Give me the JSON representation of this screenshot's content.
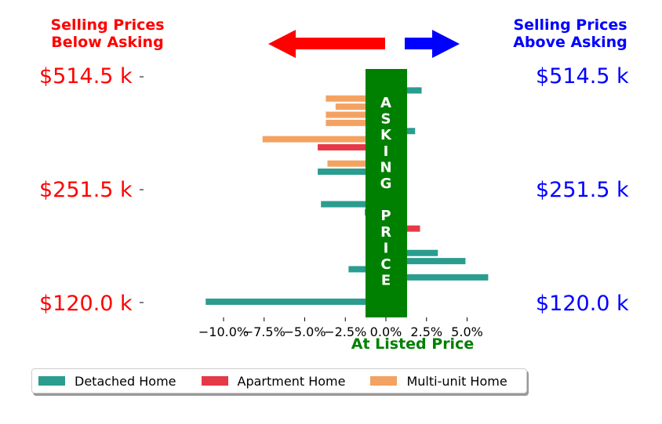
{
  "header": {
    "left_title": "Selling Prices\nBelow Asking",
    "right_title": "Selling Prices\nAbove Asking",
    "left_color": "#ff0000",
    "right_color": "#0000ff"
  },
  "price_labels": {
    "left": [
      "$514.5 k",
      "$251.5 k",
      "$120.0 k"
    ],
    "right": [
      "$514.5 k",
      "$251.5 k",
      "$120.0 k"
    ]
  },
  "center_band": {
    "label": "ASKING PRICE",
    "color": "#008000"
  },
  "chart_data": {
    "type": "bar",
    "orientation": "horizontal",
    "xlabel": "At Listed Price",
    "xlim": [
      -12.5,
      8.8
    ],
    "xticks": [
      -10.0,
      -7.5,
      -5.0,
      -2.5,
      0.0,
      2.5,
      5.0
    ],
    "xtick_labels": [
      "−10.0%",
      "−7.5%",
      "−5.0%",
      "−2.5%",
      "0.0%",
      "2.5%",
      "5.0%"
    ],
    "ylabels": [
      "$514.5 k",
      "$251.5 k",
      "$120.0 k"
    ],
    "grid": false,
    "legend_position": "bottom",
    "series_colors": {
      "Detached Home": "#2a9d8f",
      "Apartment Home": "#e63946",
      "Multi-unit Home": "#f4a261"
    },
    "series": [
      {
        "name": "Detached Home",
        "category": 0,
        "value": -0.5
      },
      {
        "name": "Detached Home",
        "category": 1,
        "value": 2.2
      },
      {
        "name": "Multi-unit Home",
        "category": 2,
        "value": -3.7
      },
      {
        "name": "Multi-unit Home",
        "category": 3,
        "value": -3.1
      },
      {
        "name": "Multi-unit Home",
        "category": 4,
        "value": -3.7
      },
      {
        "name": "Multi-unit Home",
        "category": 5,
        "value": -3.7
      },
      {
        "name": "Detached Home",
        "category": 6,
        "value": 1.8
      },
      {
        "name": "Multi-unit Home",
        "category": 7,
        "value": -7.6
      },
      {
        "name": "Apartment Home",
        "category": 8,
        "value": -4.2
      },
      {
        "name": "Detached Home",
        "category": 9,
        "value": 1.2
      },
      {
        "name": "Multi-unit Home",
        "category": 10,
        "value": -3.6
      },
      {
        "name": "Detached Home",
        "category": 11,
        "value": -4.2
      },
      {
        "name": "Detached Home",
        "category": 12,
        "value": 1.2
      },
      {
        "name": "Detached Home",
        "category": 13,
        "value": 1.2
      },
      {
        "name": "Detached Home",
        "category": 14,
        "value": 1.2
      },
      {
        "name": "Detached Home",
        "category": 15,
        "value": -4.0
      },
      {
        "name": "Detached Home",
        "category": 16,
        "value": -1.3
      },
      {
        "name": "Multi-unit Home",
        "category": 17,
        "value": 1.2
      },
      {
        "name": "Apartment Home",
        "category": 18,
        "value": 2.1
      },
      {
        "name": "Detached Home",
        "category": 19,
        "value": 1.2
      },
      {
        "name": "Apartment Home",
        "category": 20,
        "value": 1.2
      },
      {
        "name": "Detached Home",
        "category": 21,
        "value": 3.2
      },
      {
        "name": "Detached Home",
        "category": 22,
        "value": 4.9
      },
      {
        "name": "Detached Home",
        "category": 23,
        "value": -2.3
      },
      {
        "name": "Detached Home",
        "category": 24,
        "value": 6.3
      },
      {
        "name": "Detached Home",
        "category": 25,
        "value": 1.2
      },
      {
        "name": "Detached Home",
        "category": 26,
        "value": 1.2
      },
      {
        "name": "Detached Home",
        "category": 27,
        "value": -11.1
      }
    ]
  },
  "legend": {
    "items": [
      {
        "label": "Detached Home",
        "color": "#2a9d8f"
      },
      {
        "label": "Apartment Home",
        "color": "#e63946"
      },
      {
        "label": "Multi-unit Home",
        "color": "#f4a261"
      }
    ]
  }
}
